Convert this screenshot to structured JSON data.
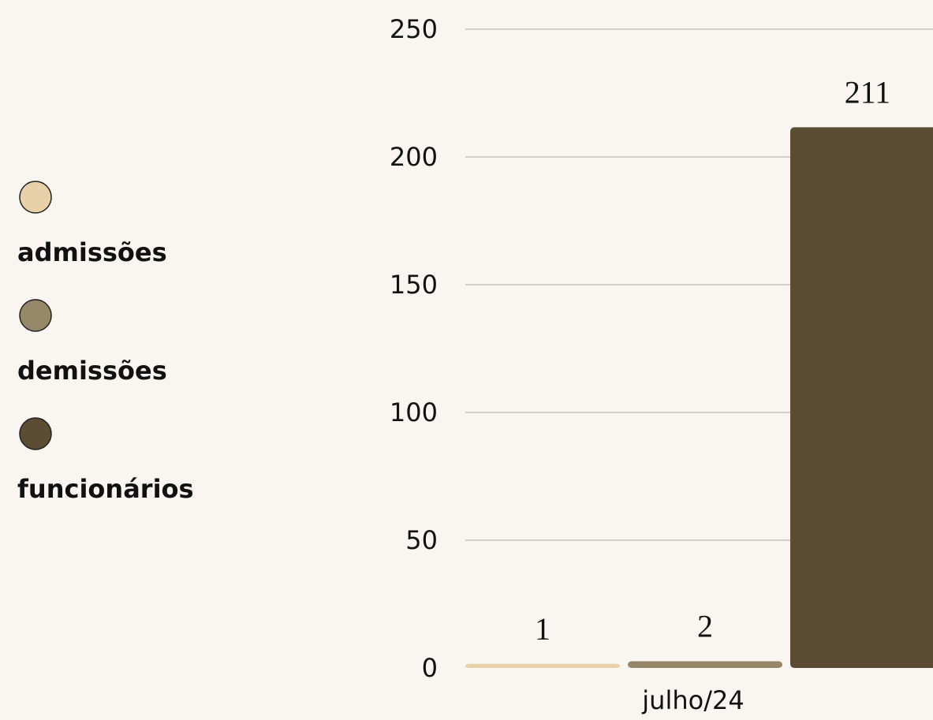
{
  "chart_data": {
    "type": "bar",
    "categories": [
      "julho/24"
    ],
    "series": [
      {
        "name": "admissões",
        "color": "#e8d0a9",
        "values": [
          1
        ]
      },
      {
        "name": "demissões",
        "color": "#978769",
        "values": [
          2
        ]
      },
      {
        "name": "funcionários",
        "color": "#5b4c33",
        "values": [
          211
        ]
      }
    ],
    "ylim": [
      0,
      250
    ],
    "yticks": [
      0,
      50,
      100,
      150,
      200,
      250
    ],
    "grid": true,
    "legend": "left"
  }
}
